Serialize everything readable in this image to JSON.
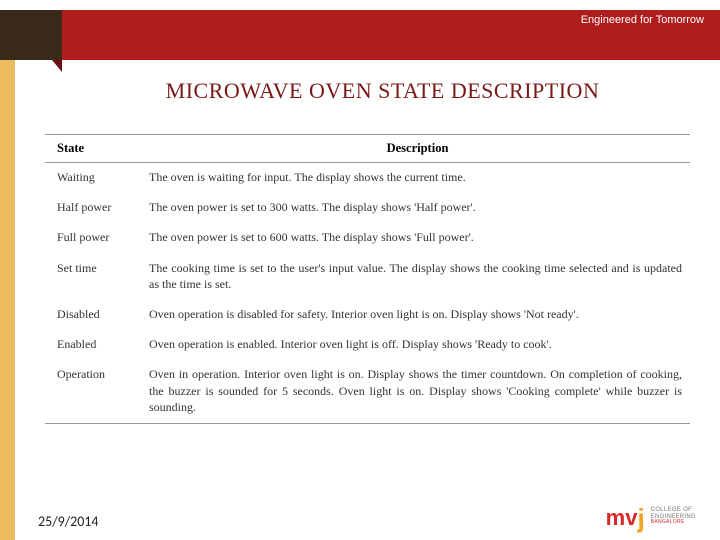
{
  "header": {
    "tagline": "Engineered for Tomorrow",
    "dark_color": "#3a2a1a",
    "red_color": "#b01d1d",
    "side_strip_color": "#ecbb5d"
  },
  "title": "MICROWAVE OVEN STATE DESCRIPTION",
  "title_color": "#7a1818",
  "table": {
    "columns": [
      "State",
      "Description"
    ],
    "rows": [
      [
        "Waiting",
        "The oven is waiting for input. The display shows the current time."
      ],
      [
        "Half power",
        "The oven power is set to 300 watts. The display shows 'Half power'."
      ],
      [
        "Full power",
        "The oven power is set to 600 watts. The display shows 'Full power'."
      ],
      [
        "Set time",
        "The cooking time is set to the user's input value. The display shows the cooking time selected and is updated as the time is set."
      ],
      [
        "Disabled",
        "Oven operation is disabled for safety. Interior oven light is on. Display shows 'Not ready'."
      ],
      [
        "Enabled",
        "Oven operation is enabled. Interior oven light is off. Display shows 'Ready to cook'."
      ],
      [
        "Operation",
        "Oven in operation. Interior oven light is on. Display shows the timer countdown. On completion of cooking, the buzzer is sounded for 5 seconds. Oven light is on. Display shows 'Cooking complete' while buzzer is sounding."
      ]
    ]
  },
  "footer": {
    "date": "25/9/2014"
  },
  "logo": {
    "line1": "COLLEGE OF",
    "line2": "ENGINEERING",
    "line3": "BANGALORE"
  }
}
